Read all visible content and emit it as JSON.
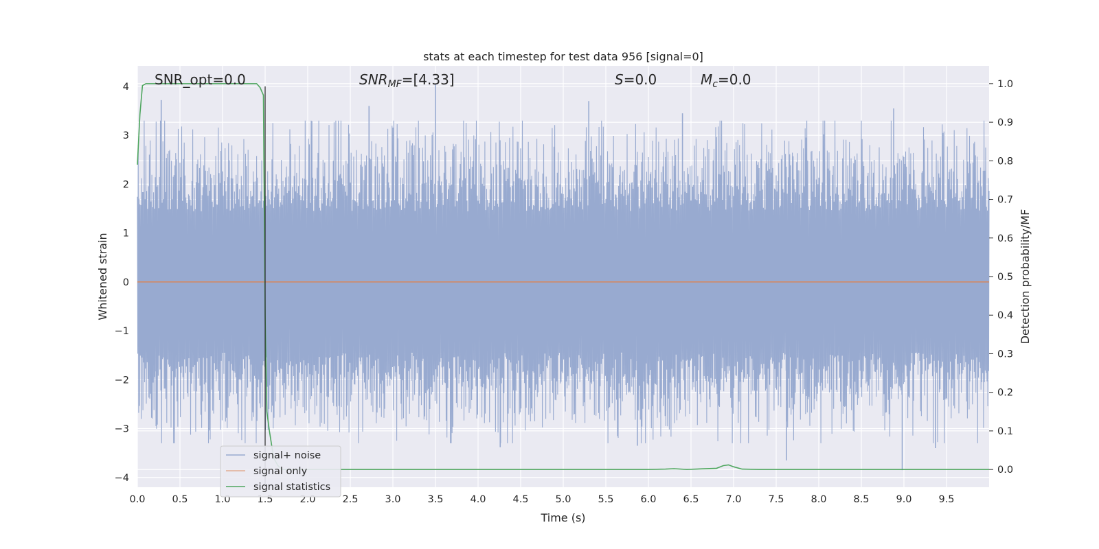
{
  "chart_data": {
    "type": "line",
    "title": "stats at each timestep for test data 956 [signal=0]",
    "xlabel": "Time (s)",
    "ylabel_left": "Whitened strain",
    "ylabel_right": "Detection probability/MF",
    "xlim": [
      0,
      10
    ],
    "ylim_left": [
      -4.2,
      4.42
    ],
    "ylim_right": [
      -0.046,
      1.046
    ],
    "x_ticks": [
      "0.0",
      "0.5",
      "1.0",
      "1.5",
      "2.0",
      "2.5",
      "3.0",
      "3.5",
      "4.0",
      "4.5",
      "5.0",
      "5.5",
      "6.0",
      "6.5",
      "7.0",
      "7.5",
      "8.0",
      "8.5",
      "9.0",
      "9.5"
    ],
    "y_left_ticks": [
      "−4",
      "−3",
      "−2",
      "−1",
      "0",
      "1",
      "2",
      "3",
      "4"
    ],
    "y_right_ticks": [
      "0.0",
      "0.1",
      "0.2",
      "0.3",
      "0.4",
      "0.5",
      "0.6",
      "0.7",
      "0.8",
      "0.9",
      "1.0"
    ],
    "grid": true,
    "annotations": [
      {
        "text": "SNR_opt=0.0"
      },
      {
        "text": "SNR",
        "sub": "MF",
        "suffix": "=[4.33]"
      },
      {
        "text": "S",
        "suffix": "=0.0"
      },
      {
        "text": "M",
        "sub": "c",
        "suffix": "=0.0"
      }
    ],
    "legend": {
      "placement": "lower-left",
      "entries": [
        "signal+ noise",
        "signal only",
        "signal statistics"
      ]
    },
    "series": [
      {
        "name": "signal+ noise",
        "axis": "left",
        "color": "#98aad0",
        "description": "whitened noise, approximately ±1.7 dense band with spikes up to about ±4",
        "amplitude_envelope": 1.7,
        "peak_spikes": [
          {
            "x": 0.28,
            "y": 3.72
          },
          {
            "x": 0.22,
            "y": -2.95
          },
          {
            "x": 3.5,
            "y": 4.05
          },
          {
            "x": 5.3,
            "y": 3.7
          },
          {
            "x": 5.87,
            "y": -3.35
          },
          {
            "x": 7.62,
            "y": -3.65
          },
          {
            "x": 8.98,
            "y": -3.85
          },
          {
            "x": 8.88,
            "y": 3.55
          },
          {
            "x": 9.37,
            "y": -3.4
          },
          {
            "x": 4.26,
            "y": -3.38
          },
          {
            "x": 2.72,
            "y": 3.6
          },
          {
            "x": 6.4,
            "y": 3.45
          }
        ]
      },
      {
        "name": "signal only",
        "axis": "left",
        "color": "#dd8452",
        "x": [
          0,
          10
        ],
        "y": [
          0,
          0
        ]
      },
      {
        "name": "signal statistics",
        "axis": "right",
        "color": "#4ea65e",
        "x": [
          0.0,
          0.03,
          0.06,
          0.1,
          0.2,
          1.4,
          1.44,
          1.48,
          1.5,
          1.52,
          1.55,
          1.6,
          1.65,
          1.7,
          2.0,
          6.0,
          6.2,
          6.3,
          6.45,
          6.8,
          6.88,
          6.94,
          7.0,
          7.1,
          7.3,
          10.0
        ],
        "y": [
          0.79,
          0.92,
          0.995,
          1.0,
          1.0,
          1.0,
          0.99,
          0.97,
          0.4,
          0.15,
          0.1,
          0.03,
          0.01,
          0.0,
          0.0,
          0.0,
          0.001,
          0.002,
          0.0,
          0.003,
          0.01,
          0.012,
          0.007,
          0.001,
          0.0,
          0.0
        ]
      },
      {
        "name": "marker",
        "axis": "left",
        "color": "#262626",
        "x": [
          1.5,
          1.5
        ],
        "y": [
          -4.2,
          4.0
        ]
      }
    ]
  }
}
